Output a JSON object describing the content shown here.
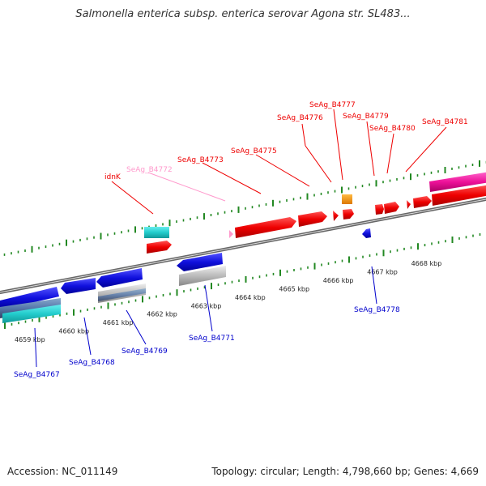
{
  "title": "Salmonella enterica subsp. enterica serovar Agona str. SL483...",
  "footer": {
    "accession": "Accession: NC_011149",
    "summary": "Topology: circular; Length: 4,798,660 bp; Genes: 4,669"
  },
  "colors": {
    "forward_red": "#ee0000",
    "reverse_blue": "#1010dd",
    "pink_label": "#ff99cc",
    "teal": "#22cccc",
    "magenta": "#ee1199",
    "orange": "#ee8800",
    "grey": "#bbbbbb",
    "steel": "#5577aa",
    "tick_green": "#228822",
    "backbone": "#777777"
  },
  "scale": {
    "unit": "kbp",
    "ticks": [
      {
        "label": "4659 kbp"
      },
      {
        "label": "4660 kbp"
      },
      {
        "label": "4661 kbp"
      },
      {
        "label": "4662 kbp"
      },
      {
        "label": "4663 kbp"
      },
      {
        "label": "4664 kbp"
      },
      {
        "label": "4665 kbp"
      },
      {
        "label": "4666 kbp"
      },
      {
        "label": "4667 kbp"
      },
      {
        "label": "4668 kbp"
      }
    ]
  },
  "labels_top": [
    {
      "name": "idnK",
      "color": "red"
    },
    {
      "name": "SeAg_B4772",
      "color": "pink"
    },
    {
      "name": "SeAg_B4773",
      "color": "red"
    },
    {
      "name": "SeAg_B4775",
      "color": "red"
    },
    {
      "name": "SeAg_B4776",
      "color": "red"
    },
    {
      "name": "SeAg_B4777",
      "color": "red"
    },
    {
      "name": "SeAg_B4779",
      "color": "red"
    },
    {
      "name": "SeAg_B4780",
      "color": "red"
    },
    {
      "name": "SeAg_B4781",
      "color": "red"
    }
  ],
  "labels_bottom": [
    {
      "name": "SeAg_B4767",
      "color": "blue"
    },
    {
      "name": "SeAg_B4768",
      "color": "blue"
    },
    {
      "name": "SeAg_B4769",
      "color": "blue"
    },
    {
      "name": "SeAg_B4771",
      "color": "blue"
    },
    {
      "name": "SeAg_B4778",
      "color": "blue"
    }
  ]
}
